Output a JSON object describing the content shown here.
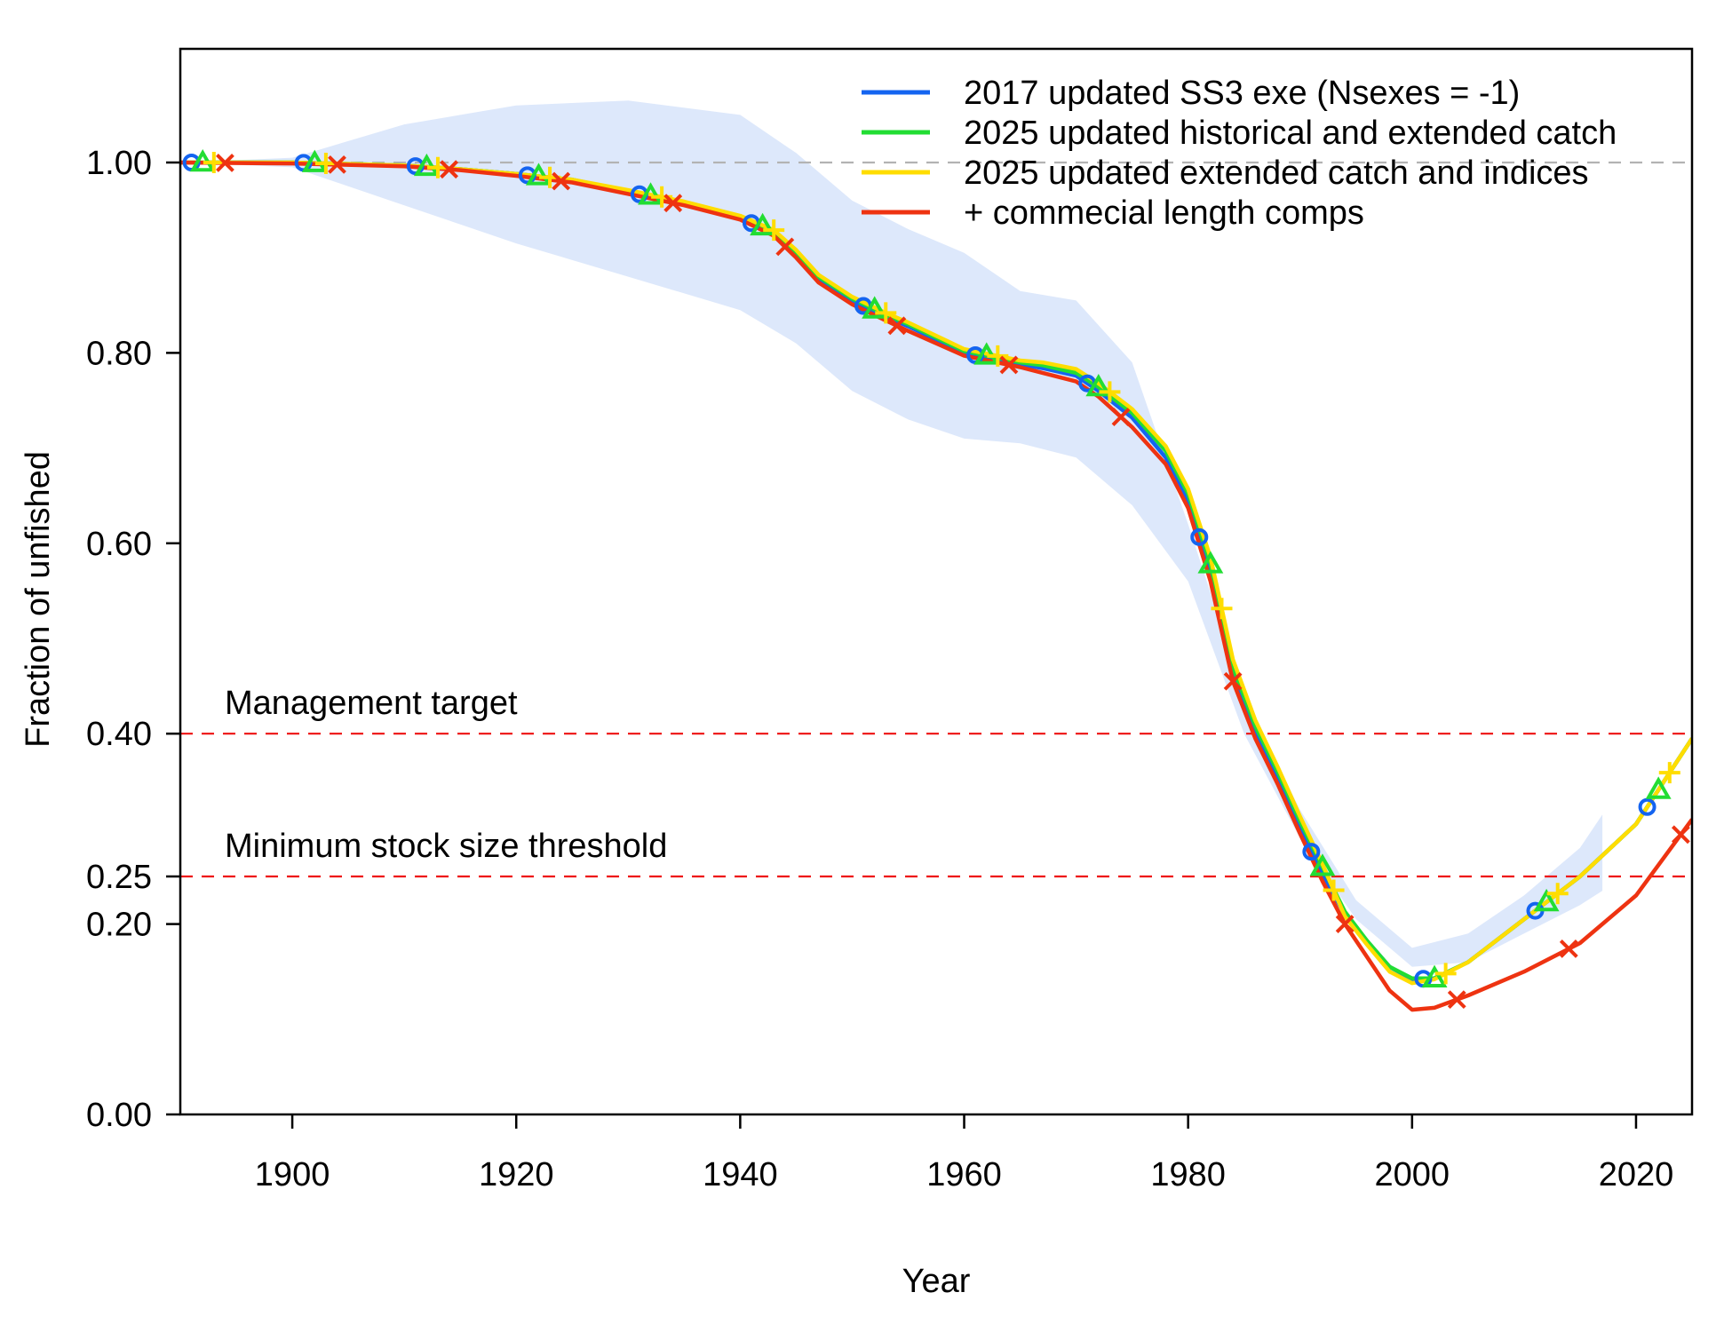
{
  "chart_data": {
    "type": "line",
    "xlabel": "Year",
    "ylabel": "Fraction of unfished",
    "xlim": [
      1890,
      2025
    ],
    "ylim": [
      0,
      1.1
    ],
    "x_ticks": [
      1900,
      1920,
      1940,
      1960,
      1980,
      2000,
      2020
    ],
    "y_ticks": [
      0.0,
      0.2,
      0.25,
      0.4,
      0.6,
      0.8,
      1.0
    ],
    "y_tick_labels": [
      "0.00",
      "0.20",
      "0.25",
      "0.40",
      "0.60",
      "0.80",
      "1.00"
    ],
    "reference_lines": [
      {
        "y": 1.0,
        "color": "#b3b3b3",
        "style": "dashed",
        "label": ""
      },
      {
        "y": 0.4,
        "color": "#ee1111",
        "style": "dashed",
        "label": "Management target"
      },
      {
        "y": 0.25,
        "color": "#ee1111",
        "style": "dashed",
        "label": "Minimum stock size threshold"
      }
    ],
    "legend_position": "top-right",
    "uncertainty_band": {
      "color": "#dde8fb",
      "x": [
        1890,
        1900,
        1910,
        1920,
        1930,
        1940,
        1945,
        1950,
        1955,
        1960,
        1965,
        1970,
        1975,
        1980,
        1985,
        1990,
        1995,
        2000,
        2005,
        2010,
        2015,
        2017
      ],
      "lower": [
        1.0,
        0.995,
        0.955,
        0.915,
        0.88,
        0.845,
        0.81,
        0.76,
        0.73,
        0.71,
        0.705,
        0.69,
        0.64,
        0.56,
        0.4,
        0.29,
        0.205,
        0.155,
        0.16,
        0.19,
        0.22,
        0.235
      ],
      "upper": [
        1.0,
        1.005,
        1.04,
        1.06,
        1.065,
        1.05,
        1.01,
        0.96,
        0.93,
        0.905,
        0.865,
        0.855,
        0.79,
        0.62,
        0.44,
        0.32,
        0.225,
        0.175,
        0.19,
        0.23,
        0.28,
        0.315
      ]
    },
    "x": [
      1890,
      1900,
      1910,
      1915,
      1920,
      1925,
      1930,
      1935,
      1940,
      1943,
      1945,
      1947,
      1950,
      1953,
      1955,
      1960,
      1965,
      1967,
      1970,
      1972,
      1975,
      1978,
      1980,
      1982,
      1984,
      1986,
      1988,
      1990,
      1992,
      1994,
      1996,
      1998,
      2000,
      2002,
      2005,
      2010,
      2015,
      2020,
      2025
    ],
    "series": [
      {
        "name": "2017 updated SS3 exe (Nsexes = -1)",
        "color": "#1464f0",
        "marker": "circle",
        "values": [
          1.0,
          1.0,
          0.997,
          0.993,
          0.988,
          0.981,
          0.969,
          0.957,
          0.942,
          0.925,
          0.903,
          0.878,
          0.855,
          0.838,
          0.828,
          0.8,
          0.788,
          0.784,
          0.776,
          0.76,
          0.732,
          0.69,
          0.645,
          0.568,
          0.465,
          0.4,
          0.352,
          0.3,
          0.252,
          0.21,
          0.182,
          0.155,
          0.142,
          0.143,
          0.16,
          0.205,
          0.25,
          0.305,
          0.395
        ]
      },
      {
        "name": "2025 updated historical and extended catch",
        "color": "#22dd33",
        "marker": "triangle",
        "values": [
          1.0,
          1.0,
          0.997,
          0.993,
          0.988,
          0.982,
          0.97,
          0.958,
          0.943,
          0.928,
          0.906,
          0.88,
          0.857,
          0.84,
          0.83,
          0.802,
          0.79,
          0.787,
          0.779,
          0.764,
          0.737,
          0.697,
          0.652,
          0.578,
          0.47,
          0.408,
          0.36,
          0.308,
          0.26,
          0.213,
          0.182,
          0.155,
          0.143,
          0.143,
          0.16,
          0.205,
          0.25,
          0.305,
          0.395
        ]
      },
      {
        "name": "2025 updated extended catch and indices",
        "color": "#ffdd00",
        "marker": "plus",
        "values": [
          1.0,
          1.0,
          0.997,
          0.993,
          0.988,
          0.982,
          0.971,
          0.959,
          0.944,
          0.929,
          0.908,
          0.882,
          0.859,
          0.842,
          0.832,
          0.804,
          0.792,
          0.79,
          0.783,
          0.768,
          0.741,
          0.702,
          0.657,
          0.585,
          0.478,
          0.414,
          0.365,
          0.313,
          0.263,
          0.208,
          0.178,
          0.15,
          0.138,
          0.142,
          0.16,
          0.205,
          0.25,
          0.305,
          0.395
        ]
      },
      {
        "name": "+ commecial length comps",
        "color": "#ee3311",
        "marker": "x",
        "values": [
          1.0,
          0.999,
          0.996,
          0.992,
          0.986,
          0.979,
          0.967,
          0.955,
          0.94,
          0.923,
          0.9,
          0.874,
          0.851,
          0.834,
          0.823,
          0.797,
          0.785,
          0.779,
          0.77,
          0.754,
          0.722,
          0.683,
          0.637,
          0.56,
          0.455,
          0.395,
          0.347,
          0.295,
          0.245,
          0.2,
          0.165,
          0.13,
          0.11,
          0.112,
          0.125,
          0.15,
          0.18,
          0.23,
          0.31
        ]
      }
    ]
  }
}
